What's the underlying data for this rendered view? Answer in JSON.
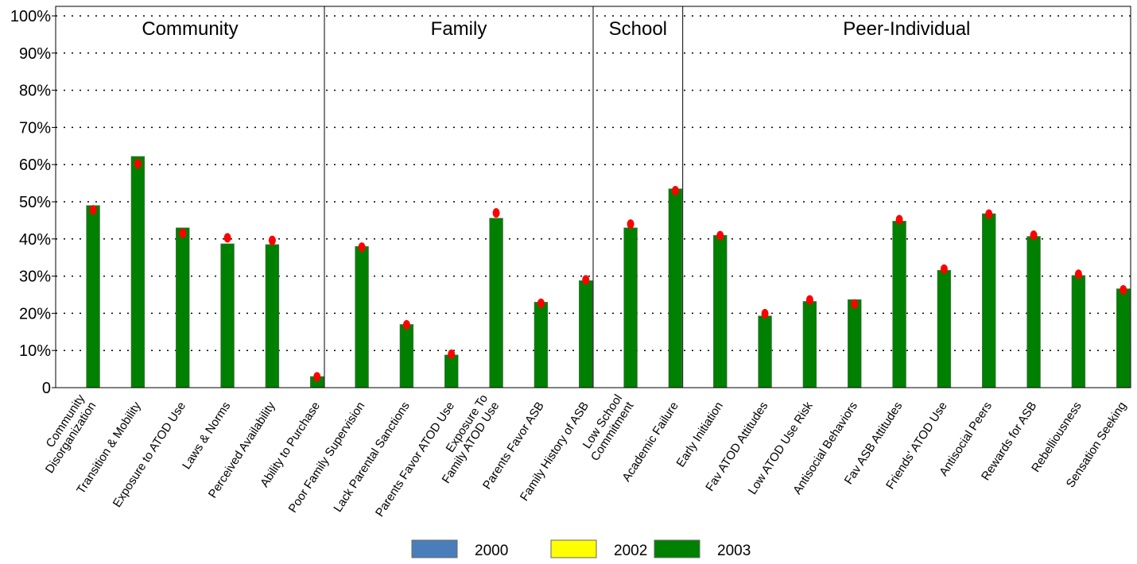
{
  "chart_data": {
    "type": "bar",
    "categories": [
      "Community\nDisorganization",
      "Transition & Mobility",
      "Exposure to ATOD Use",
      "Laws & Norms",
      "Perceived Availability",
      "Ability to Purchase",
      "Poor Family Supervision",
      "Lack Parental Sanctions",
      "Parents Favor ATOD Use",
      "Exposure To\nFamily ATOD Use",
      "Parents Favor ASB",
      "Family History of ASB",
      "Low School\nCommitment",
      "Academic Failure",
      "Early Initiation",
      "Fav ATOD Attitudes",
      "Low ATOD Use Risk",
      "Antisocial Behaviors",
      "Fav ASB Attitudes",
      "Friends' ATOD Use",
      "Antisocial Peers",
      "Rewards for ASB",
      "Rebelliousness",
      "Sensation Seeking"
    ],
    "groups": [
      {
        "label": "Community",
        "size": 6
      },
      {
        "label": "Family",
        "size": 6
      },
      {
        "label": "School",
        "size": 2
      },
      {
        "label": "Peer-Individual",
        "size": 10
      }
    ],
    "series": [
      {
        "name": "2000",
        "color": "#4a7ebb",
        "values": [
          null,
          null,
          null,
          null,
          null,
          null,
          null,
          null,
          null,
          null,
          null,
          null,
          null,
          null,
          null,
          null,
          null,
          null,
          null,
          null,
          null,
          null,
          null,
          null
        ]
      },
      {
        "name": "2002",
        "color": "#ffff00",
        "values": [
          null,
          null,
          null,
          null,
          null,
          null,
          null,
          null,
          null,
          null,
          null,
          null,
          null,
          null,
          null,
          null,
          null,
          null,
          null,
          null,
          null,
          null,
          null,
          null
        ]
      },
      {
        "name": "2003",
        "color": "#008000",
        "values": [
          49,
          62.2,
          43,
          38.7,
          38.5,
          3,
          38,
          17,
          8.8,
          45.6,
          23,
          28.8,
          43,
          53.5,
          41,
          19.3,
          23.2,
          23.7,
          44.8,
          31.6,
          46.8,
          40.7,
          30.2,
          26.6
        ]
      }
    ],
    "markers": {
      "color": "#ff0000",
      "values": [
        47.8,
        60.2,
        41.5,
        40.3,
        39.6,
        2.9,
        37.8,
        16.9,
        9,
        47,
        22.7,
        29,
        44,
        53,
        40.9,
        19.9,
        23.6,
        22.5,
        45.2,
        31.9,
        46.7,
        41,
        30.5,
        26.3
      ]
    },
    "ylim": [
      0,
      100
    ],
    "yticks": [
      0,
      {
        "value": 10,
        "label": "10%"
      },
      {
        "value": 20,
        "label": "20%"
      },
      {
        "value": 30,
        "label": "30%"
      },
      {
        "value": 40,
        "label": "40%"
      },
      {
        "value": 50,
        "label": "50%"
      },
      {
        "value": 60,
        "label": "60%"
      },
      {
        "value": 70,
        "label": "70%"
      },
      {
        "value": 80,
        "label": "80%"
      },
      {
        "value": 90,
        "label": "90%"
      },
      {
        "value": 100,
        "label": "100%"
      }
    ],
    "grid": true,
    "legend": "bottom"
  }
}
